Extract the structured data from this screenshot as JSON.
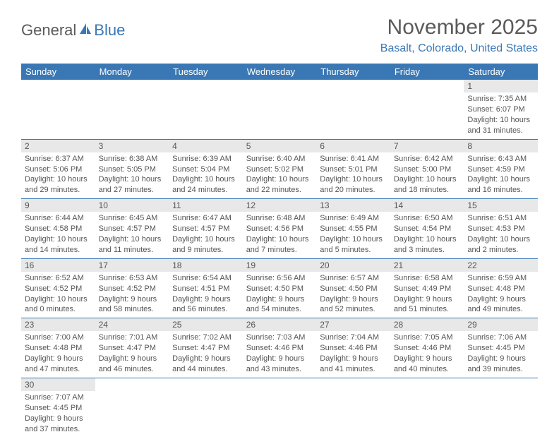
{
  "logo": {
    "text1": "General",
    "text2": "Blue"
  },
  "title": "November 2025",
  "location": "Basalt, Colorado, United States",
  "colors": {
    "header_bg": "#3a78b5",
    "header_text": "#ffffff",
    "daynum_bg": "#e8e8e8",
    "border": "#3a78b5",
    "text": "#555555",
    "logo_gray": "#5a5a5a",
    "logo_blue": "#3a78b5"
  },
  "weekdays": [
    "Sunday",
    "Monday",
    "Tuesday",
    "Wednesday",
    "Thursday",
    "Friday",
    "Saturday"
  ],
  "weeks": [
    [
      {
        "n": "",
        "empty": true,
        "l1": "",
        "l2": "",
        "l3": "",
        "l4": ""
      },
      {
        "n": "",
        "empty": true,
        "l1": "",
        "l2": "",
        "l3": "",
        "l4": ""
      },
      {
        "n": "",
        "empty": true,
        "l1": "",
        "l2": "",
        "l3": "",
        "l4": ""
      },
      {
        "n": "",
        "empty": true,
        "l1": "",
        "l2": "",
        "l3": "",
        "l4": ""
      },
      {
        "n": "",
        "empty": true,
        "l1": "",
        "l2": "",
        "l3": "",
        "l4": ""
      },
      {
        "n": "",
        "empty": true,
        "l1": "",
        "l2": "",
        "l3": "",
        "l4": ""
      },
      {
        "n": "1",
        "l1": "Sunrise: 7:35 AM",
        "l2": "Sunset: 6:07 PM",
        "l3": "Daylight: 10 hours",
        "l4": "and 31 minutes."
      }
    ],
    [
      {
        "n": "2",
        "l1": "Sunrise: 6:37 AM",
        "l2": "Sunset: 5:06 PM",
        "l3": "Daylight: 10 hours",
        "l4": "and 29 minutes."
      },
      {
        "n": "3",
        "l1": "Sunrise: 6:38 AM",
        "l2": "Sunset: 5:05 PM",
        "l3": "Daylight: 10 hours",
        "l4": "and 27 minutes."
      },
      {
        "n": "4",
        "l1": "Sunrise: 6:39 AM",
        "l2": "Sunset: 5:04 PM",
        "l3": "Daylight: 10 hours",
        "l4": "and 24 minutes."
      },
      {
        "n": "5",
        "l1": "Sunrise: 6:40 AM",
        "l2": "Sunset: 5:02 PM",
        "l3": "Daylight: 10 hours",
        "l4": "and 22 minutes."
      },
      {
        "n": "6",
        "l1": "Sunrise: 6:41 AM",
        "l2": "Sunset: 5:01 PM",
        "l3": "Daylight: 10 hours",
        "l4": "and 20 minutes."
      },
      {
        "n": "7",
        "l1": "Sunrise: 6:42 AM",
        "l2": "Sunset: 5:00 PM",
        "l3": "Daylight: 10 hours",
        "l4": "and 18 minutes."
      },
      {
        "n": "8",
        "l1": "Sunrise: 6:43 AM",
        "l2": "Sunset: 4:59 PM",
        "l3": "Daylight: 10 hours",
        "l4": "and 16 minutes."
      }
    ],
    [
      {
        "n": "9",
        "l1": "Sunrise: 6:44 AM",
        "l2": "Sunset: 4:58 PM",
        "l3": "Daylight: 10 hours",
        "l4": "and 14 minutes."
      },
      {
        "n": "10",
        "l1": "Sunrise: 6:45 AM",
        "l2": "Sunset: 4:57 PM",
        "l3": "Daylight: 10 hours",
        "l4": "and 11 minutes."
      },
      {
        "n": "11",
        "l1": "Sunrise: 6:47 AM",
        "l2": "Sunset: 4:57 PM",
        "l3": "Daylight: 10 hours",
        "l4": "and 9 minutes."
      },
      {
        "n": "12",
        "l1": "Sunrise: 6:48 AM",
        "l2": "Sunset: 4:56 PM",
        "l3": "Daylight: 10 hours",
        "l4": "and 7 minutes."
      },
      {
        "n": "13",
        "l1": "Sunrise: 6:49 AM",
        "l2": "Sunset: 4:55 PM",
        "l3": "Daylight: 10 hours",
        "l4": "and 5 minutes."
      },
      {
        "n": "14",
        "l1": "Sunrise: 6:50 AM",
        "l2": "Sunset: 4:54 PM",
        "l3": "Daylight: 10 hours",
        "l4": "and 3 minutes."
      },
      {
        "n": "15",
        "l1": "Sunrise: 6:51 AM",
        "l2": "Sunset: 4:53 PM",
        "l3": "Daylight: 10 hours",
        "l4": "and 2 minutes."
      }
    ],
    [
      {
        "n": "16",
        "l1": "Sunrise: 6:52 AM",
        "l2": "Sunset: 4:52 PM",
        "l3": "Daylight: 10 hours",
        "l4": "and 0 minutes."
      },
      {
        "n": "17",
        "l1": "Sunrise: 6:53 AM",
        "l2": "Sunset: 4:52 PM",
        "l3": "Daylight: 9 hours",
        "l4": "and 58 minutes."
      },
      {
        "n": "18",
        "l1": "Sunrise: 6:54 AM",
        "l2": "Sunset: 4:51 PM",
        "l3": "Daylight: 9 hours",
        "l4": "and 56 minutes."
      },
      {
        "n": "19",
        "l1": "Sunrise: 6:56 AM",
        "l2": "Sunset: 4:50 PM",
        "l3": "Daylight: 9 hours",
        "l4": "and 54 minutes."
      },
      {
        "n": "20",
        "l1": "Sunrise: 6:57 AM",
        "l2": "Sunset: 4:50 PM",
        "l3": "Daylight: 9 hours",
        "l4": "and 52 minutes."
      },
      {
        "n": "21",
        "l1": "Sunrise: 6:58 AM",
        "l2": "Sunset: 4:49 PM",
        "l3": "Daylight: 9 hours",
        "l4": "and 51 minutes."
      },
      {
        "n": "22",
        "l1": "Sunrise: 6:59 AM",
        "l2": "Sunset: 4:48 PM",
        "l3": "Daylight: 9 hours",
        "l4": "and 49 minutes."
      }
    ],
    [
      {
        "n": "23",
        "l1": "Sunrise: 7:00 AM",
        "l2": "Sunset: 4:48 PM",
        "l3": "Daylight: 9 hours",
        "l4": "and 47 minutes."
      },
      {
        "n": "24",
        "l1": "Sunrise: 7:01 AM",
        "l2": "Sunset: 4:47 PM",
        "l3": "Daylight: 9 hours",
        "l4": "and 46 minutes."
      },
      {
        "n": "25",
        "l1": "Sunrise: 7:02 AM",
        "l2": "Sunset: 4:47 PM",
        "l3": "Daylight: 9 hours",
        "l4": "and 44 minutes."
      },
      {
        "n": "26",
        "l1": "Sunrise: 7:03 AM",
        "l2": "Sunset: 4:46 PM",
        "l3": "Daylight: 9 hours",
        "l4": "and 43 minutes."
      },
      {
        "n": "27",
        "l1": "Sunrise: 7:04 AM",
        "l2": "Sunset: 4:46 PM",
        "l3": "Daylight: 9 hours",
        "l4": "and 41 minutes."
      },
      {
        "n": "28",
        "l1": "Sunrise: 7:05 AM",
        "l2": "Sunset: 4:46 PM",
        "l3": "Daylight: 9 hours",
        "l4": "and 40 minutes."
      },
      {
        "n": "29",
        "l1": "Sunrise: 7:06 AM",
        "l2": "Sunset: 4:45 PM",
        "l3": "Daylight: 9 hours",
        "l4": "and 39 minutes."
      }
    ],
    [
      {
        "n": "30",
        "l1": "Sunrise: 7:07 AM",
        "l2": "Sunset: 4:45 PM",
        "l3": "Daylight: 9 hours",
        "l4": "and 37 minutes."
      },
      {
        "n": "",
        "empty": true,
        "l1": "",
        "l2": "",
        "l3": "",
        "l4": ""
      },
      {
        "n": "",
        "empty": true,
        "l1": "",
        "l2": "",
        "l3": "",
        "l4": ""
      },
      {
        "n": "",
        "empty": true,
        "l1": "",
        "l2": "",
        "l3": "",
        "l4": ""
      },
      {
        "n": "",
        "empty": true,
        "l1": "",
        "l2": "",
        "l3": "",
        "l4": ""
      },
      {
        "n": "",
        "empty": true,
        "l1": "",
        "l2": "",
        "l3": "",
        "l4": ""
      },
      {
        "n": "",
        "empty": true,
        "l1": "",
        "l2": "",
        "l3": "",
        "l4": ""
      }
    ]
  ]
}
